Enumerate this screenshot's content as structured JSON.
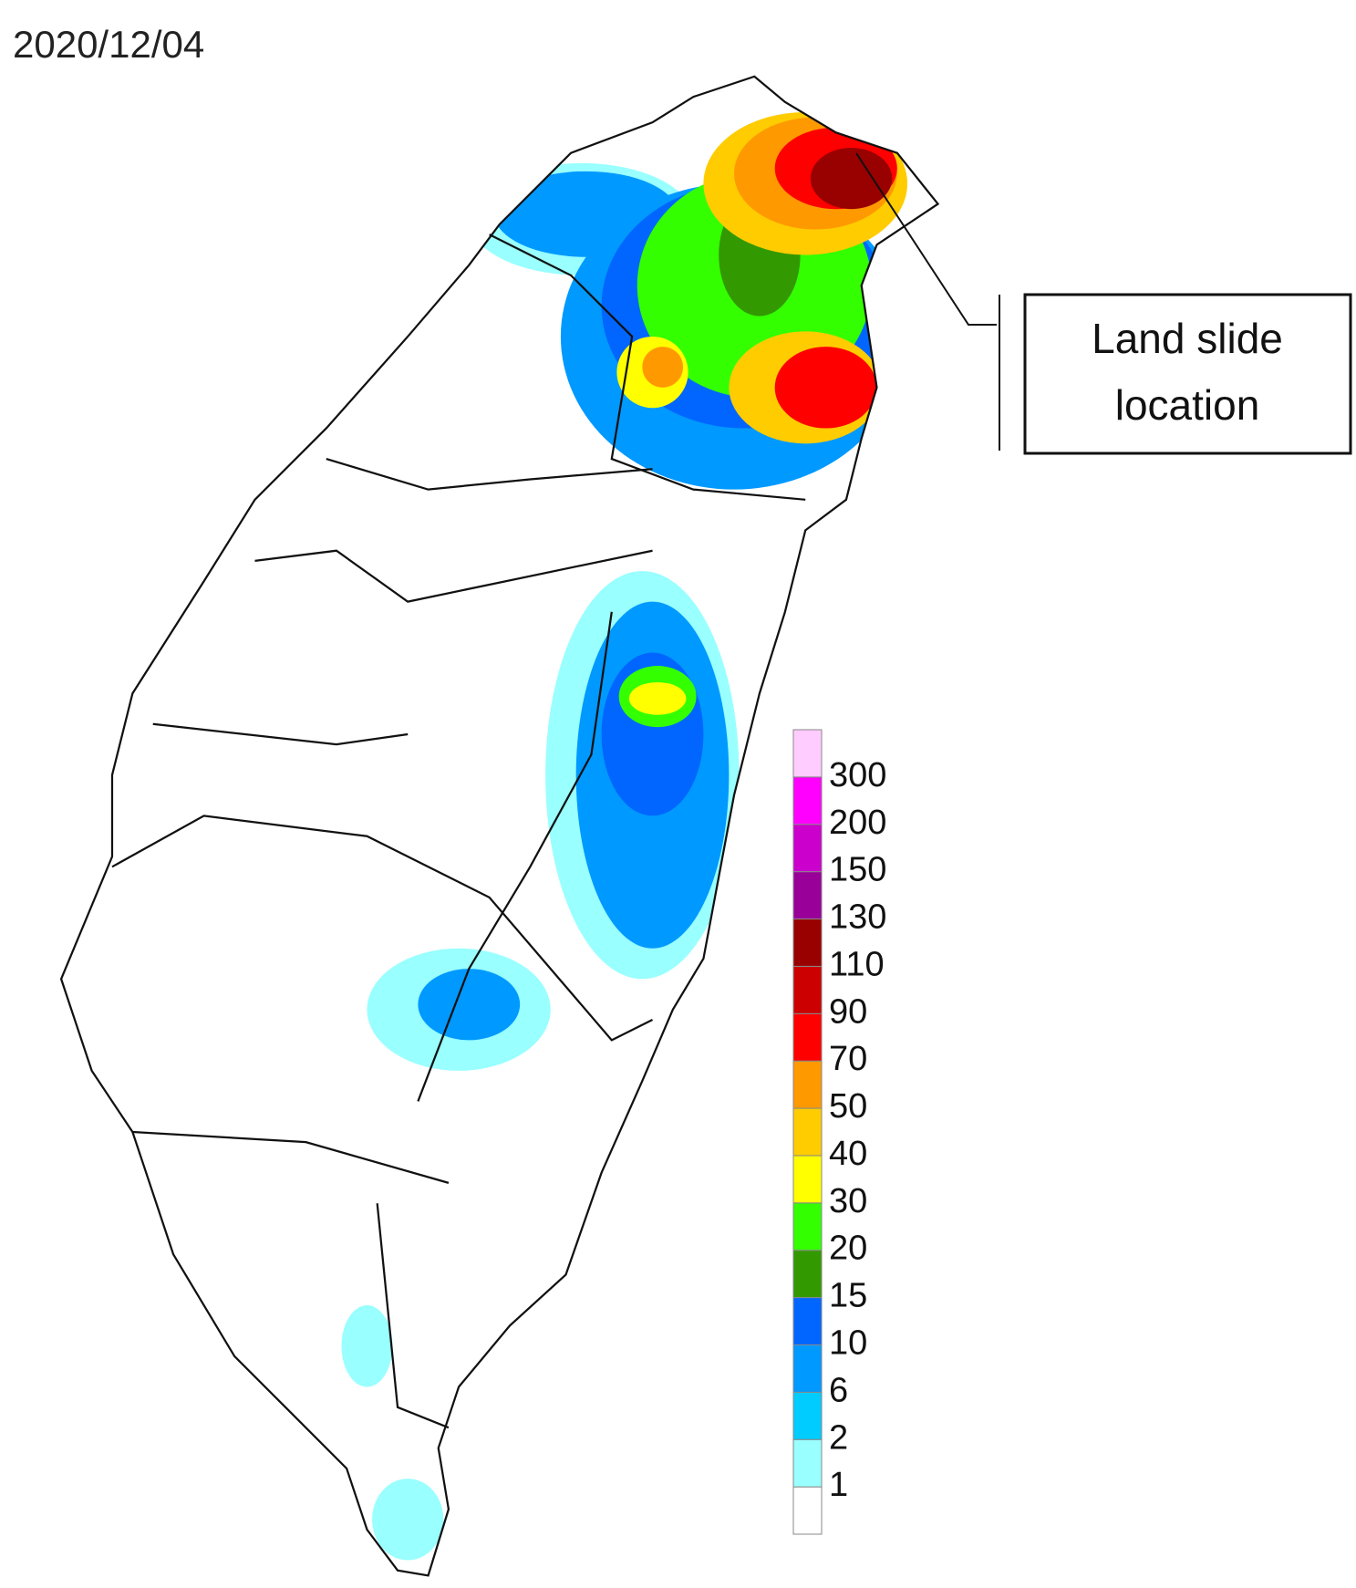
{
  "title": "2020/12/04",
  "annotation": {
    "lines": [
      "Land slide",
      "location"
    ]
  },
  "legend": {
    "labels": [
      1,
      2,
      6,
      10,
      15,
      20,
      30,
      40,
      50,
      70,
      90,
      110,
      130,
      150,
      200,
      300
    ],
    "colors": [
      "#ffffff",
      "#99ffff",
      "#00ccff",
      "#0099ff",
      "#0066ff",
      "#339900",
      "#33ff00",
      "#ffff00",
      "#ffcc00",
      "#ff9900",
      "#ff0000",
      "#cc0000",
      "#990000",
      "#990099",
      "#cc00cc",
      "#ff00ff",
      "#ffccff"
    ]
  }
}
